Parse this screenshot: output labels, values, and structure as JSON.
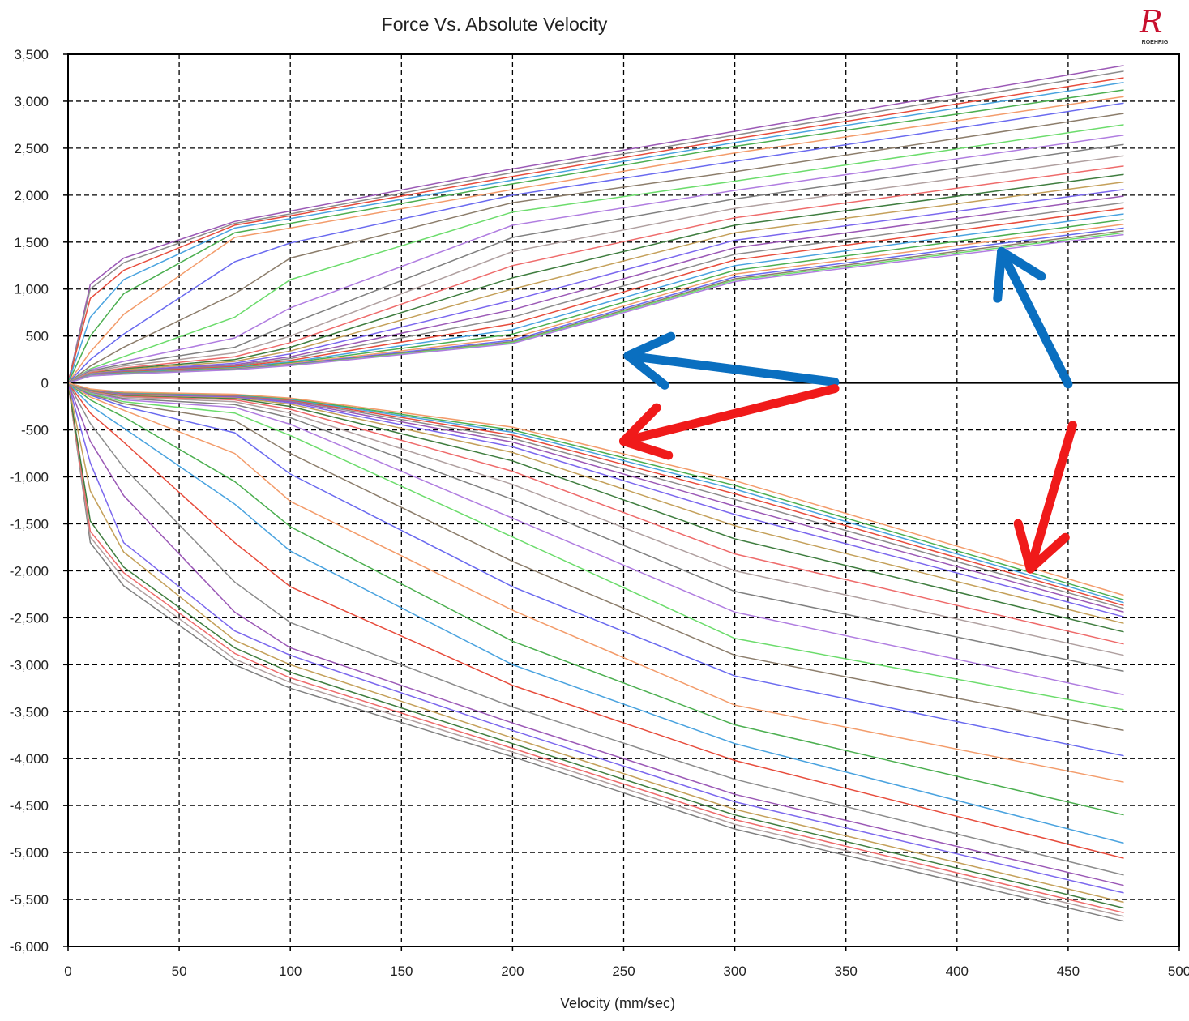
{
  "logo": {
    "mark": "R",
    "wordmark": "ROEHRIG"
  },
  "colors": {
    "plot_border": "#000000",
    "grid": "#000000",
    "arrow_blue": "#0a6fc0",
    "arrow_red": "#f01a1a",
    "palette": [
      "#9b59b6",
      "#8c8c8c",
      "#e74c3c",
      "#4aa3df",
      "#4caf50",
      "#f39c6b",
      "#6a6aef",
      "#8c7d6b",
      "#6cdc6c",
      "#b07de0",
      "#808080",
      "#b0a0a0",
      "#ee6b6b",
      "#3f7d3f",
      "#c4a05a",
      "#7b68ee"
    ]
  },
  "annotations": [
    {
      "type": "arrow",
      "color": "blue",
      "from": [
        345,
        10
      ],
      "to": [
        252,
        290
      ]
    },
    {
      "type": "arrow",
      "color": "blue",
      "from": [
        450,
        -10
      ],
      "to": [
        420,
        1400
      ]
    },
    {
      "type": "arrow",
      "color": "red",
      "from": [
        345,
        -60
      ],
      "to": [
        250,
        -620
      ]
    },
    {
      "type": "arrow",
      "color": "red",
      "from": [
        452,
        -450
      ],
      "to": [
        433,
        -1980
      ]
    }
  ],
  "chart_data": {
    "type": "line",
    "title": "Force Vs. Absolute Velocity",
    "xlabel": "Velocity (mm/sec)",
    "ylabel": "",
    "xlim": [
      0,
      500
    ],
    "ylim": [
      -6000,
      3500
    ],
    "x_ticks": [
      0,
      50,
      100,
      150,
      200,
      250,
      300,
      350,
      400,
      450,
      500
    ],
    "y_ticks": [
      3500,
      3000,
      2500,
      2000,
      1500,
      1000,
      500,
      0,
      -500,
      -1000,
      -1500,
      -2000,
      -2500,
      -3000,
      -3500,
      -4000,
      -4500,
      -5000,
      -5500,
      -6000
    ],
    "x_tick_labels": [
      "0",
      "50",
      "100",
      "150",
      "200",
      "250",
      "300",
      "350",
      "400",
      "450",
      "500"
    ],
    "y_tick_labels": [
      "3,500",
      "3,000",
      "2,500",
      "2,000",
      "1,500",
      "1,000",
      "500",
      "0",
      "-500",
      "-1,000",
      "-1,500",
      "-2,000",
      "-2,500",
      "-3,000",
      "-3,500",
      "-4,000",
      "-4,500",
      "-5,000",
      "-5,500",
      "-6,000"
    ],
    "grid": true,
    "legend": "none",
    "x": [
      0,
      10,
      25,
      75,
      100,
      200,
      300,
      475
    ],
    "series": [
      {
        "values": [
          0,
          1050,
          1330,
          1720,
          1830,
          2280,
          2680,
          3380
        ]
      },
      {
        "values": [
          0,
          1000,
          1280,
          1700,
          1800,
          2240,
          2640,
          3320
        ]
      },
      {
        "values": [
          0,
          900,
          1200,
          1680,
          1780,
          2200,
          2600,
          3250
        ]
      },
      {
        "values": [
          0,
          700,
          1100,
          1650,
          1750,
          2160,
          2560,
          3200
        ]
      },
      {
        "values": [
          0,
          500,
          950,
          1600,
          1700,
          2120,
          2520,
          3120
        ]
      },
      {
        "values": [
          0,
          330,
          730,
          1550,
          1650,
          2060,
          2450,
          3050
        ]
      },
      {
        "values": [
          0,
          250,
          520,
          1290,
          1490,
          2000,
          2360,
          2980
        ]
      },
      {
        "values": [
          0,
          180,
          380,
          950,
          1330,
          1920,
          2250,
          2870
        ]
      },
      {
        "values": [
          0,
          150,
          280,
          700,
          1100,
          1820,
          2150,
          2750
        ]
      },
      {
        "values": [
          0,
          140,
          230,
          480,
          800,
          1680,
          2050,
          2640
        ]
      },
      {
        "values": [
          0,
          130,
          200,
          380,
          630,
          1550,
          1960,
          2540
        ]
      },
      {
        "values": [
          0,
          120,
          180,
          320,
          500,
          1400,
          1860,
          2420
        ]
      },
      {
        "values": [
          0,
          110,
          160,
          280,
          430,
          1250,
          1760,
          2310
        ]
      },
      {
        "values": [
          0,
          100,
          150,
          250,
          380,
          1120,
          1680,
          2220
        ]
      },
      {
        "values": [
          0,
          100,
          140,
          230,
          340,
          1000,
          1600,
          2140
        ]
      },
      {
        "values": [
          0,
          95,
          130,
          210,
          310,
          880,
          1520,
          2060
        ]
      },
      {
        "values": [
          0,
          90,
          125,
          195,
          280,
          780,
          1440,
          1990
        ]
      },
      {
        "values": [
          0,
          90,
          120,
          185,
          260,
          700,
          1370,
          1920
        ]
      },
      {
        "values": [
          0,
          85,
          115,
          175,
          240,
          630,
          1310,
          1860
        ]
      },
      {
        "values": [
          0,
          85,
          110,
          165,
          225,
          570,
          1250,
          1800
        ]
      },
      {
        "values": [
          0,
          80,
          105,
          160,
          215,
          520,
          1200,
          1740
        ]
      },
      {
        "values": [
          0,
          80,
          100,
          155,
          205,
          480,
          1160,
          1690
        ]
      },
      {
        "values": [
          0,
          78,
          98,
          150,
          198,
          455,
          1130,
          1650
        ]
      },
      {
        "values": [
          0,
          76,
          96,
          146,
          192,
          440,
          1110,
          1620
        ]
      },
      {
        "values": [
          0,
          75,
          95,
          143,
          188,
          430,
          1095,
          1600
        ]
      },
      {
        "values": [
          0,
          74,
          94,
          140,
          185,
          420,
          1080,
          1580
        ]
      },
      {
        "values": [
          0,
          -1700,
          -2160,
          -3000,
          -3250,
          -3980,
          -4750,
          -5730
        ]
      },
      {
        "values": [
          0,
          -1640,
          -2080,
          -2940,
          -3190,
          -3930,
          -4700,
          -5680
        ]
      },
      {
        "values": [
          0,
          -1580,
          -2020,
          -2880,
          -3140,
          -3890,
          -4650,
          -5640
        ]
      },
      {
        "values": [
          0,
          -1470,
          -1960,
          -2820,
          -3080,
          -3840,
          -4600,
          -5590
        ]
      },
      {
        "values": [
          0,
          -1150,
          -1800,
          -2740,
          -3000,
          -3780,
          -4540,
          -5530
        ]
      },
      {
        "values": [
          0,
          -850,
          -1700,
          -2640,
          -2900,
          -3700,
          -4460,
          -5430
        ]
      },
      {
        "values": [
          0,
          -620,
          -1200,
          -2440,
          -2820,
          -3620,
          -4380,
          -5350
        ]
      },
      {
        "values": [
          0,
          -430,
          -900,
          -2120,
          -2550,
          -3450,
          -4220,
          -5240
        ]
      },
      {
        "values": [
          0,
          -320,
          -630,
          -1700,
          -2170,
          -3220,
          -4020,
          -5060
        ]
      },
      {
        "values": [
          0,
          -240,
          -480,
          -1290,
          -1790,
          -3000,
          -3840,
          -4900
        ]
      },
      {
        "values": [
          0,
          -180,
          -360,
          -1050,
          -1530,
          -2750,
          -3640,
          -4600
        ]
      },
      {
        "values": [
          0,
          -150,
          -290,
          -750,
          -1260,
          -2420,
          -3430,
          -4250
        ]
      },
      {
        "values": [
          0,
          -130,
          -250,
          -530,
          -970,
          -2170,
          -3120,
          -3970
        ]
      },
      {
        "values": [
          0,
          -120,
          -220,
          -400,
          -750,
          -1900,
          -2900,
          -3700
        ]
      },
      {
        "values": [
          0,
          -110,
          -200,
          -320,
          -560,
          -1640,
          -2720,
          -3480
        ]
      },
      {
        "values": [
          0,
          -100,
          -180,
          -260,
          -440,
          -1440,
          -2440,
          -3320
        ]
      },
      {
        "values": [
          0,
          -95,
          -165,
          -230,
          -370,
          -1240,
          -2220,
          -3070
        ]
      },
      {
        "values": [
          0,
          -90,
          -150,
          -200,
          -320,
          -1080,
          -2000,
          -2900
        ]
      },
      {
        "values": [
          0,
          -85,
          -140,
          -180,
          -280,
          -940,
          -1820,
          -2780
        ]
      },
      {
        "values": [
          0,
          -80,
          -130,
          -165,
          -250,
          -830,
          -1660,
          -2650
        ]
      },
      {
        "values": [
          0,
          -78,
          -125,
          -155,
          -225,
          -740,
          -1520,
          -2560
        ]
      },
      {
        "values": [
          0,
          -76,
          -120,
          -148,
          -210,
          -680,
          -1400,
          -2490
        ]
      },
      {
        "values": [
          0,
          -74,
          -115,
          -142,
          -198,
          -630,
          -1310,
          -2440
        ]
      },
      {
        "values": [
          0,
          -72,
          -112,
          -137,
          -188,
          -590,
          -1240,
          -2400
        ]
      },
      {
        "values": [
          0,
          -70,
          -108,
          -132,
          -180,
          -555,
          -1180,
          -2370
        ]
      },
      {
        "values": [
          0,
          -68,
          -104,
          -128,
          -173,
          -525,
          -1130,
          -2340
        ]
      },
      {
        "values": [
          0,
          -66,
          -100,
          -124,
          -167,
          -500,
          -1090,
          -2310
        ]
      },
      {
        "values": [
          0,
          -64,
          -97,
          -120,
          -160,
          -470,
          -1040,
          -2260
        ]
      }
    ]
  }
}
